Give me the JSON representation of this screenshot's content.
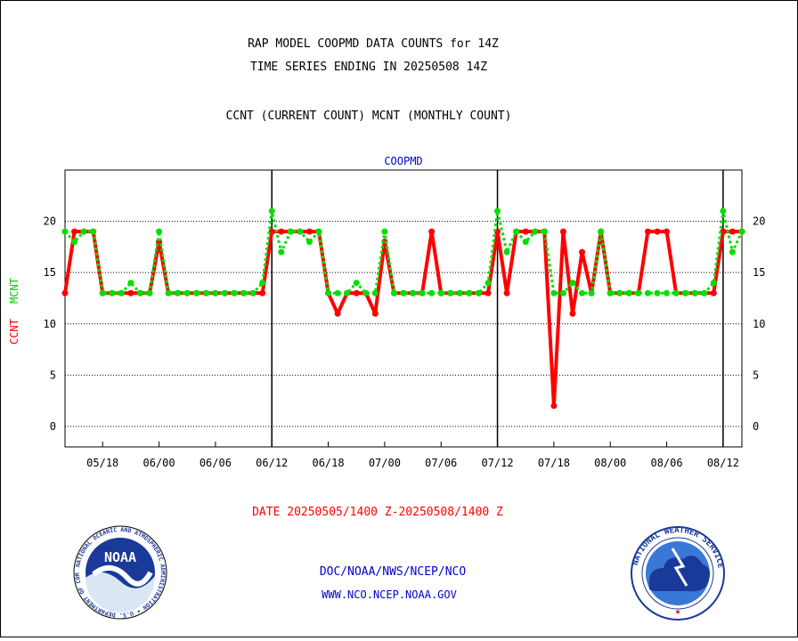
{
  "header": {
    "title_line1": "RAP MODEL COOPMD DATA COUNTS for 14Z",
    "title_line2": "TIME SERIES ENDING IN 20250508 14Z",
    "subtitle": "CCNT (CURRENT COUNT) MCNT (MONTHLY COUNT)"
  },
  "footer": {
    "date_range": "DATE 20250505/1400 Z-20250508/1400 Z",
    "org": "DOC/NOAA/NWS/NCEP/NCO",
    "url": "WWW.NCO.NCEP.NOAA.GOV"
  },
  "logos": {
    "left": {
      "icon": "noaa-logo",
      "text": "NOAA",
      "ring_text": "NATIONAL OCEANIC AND ATMOSPHERIC ADMINISTRATION • U.S. DEPARTMENT OF COMMERCE"
    },
    "right": {
      "icon": "nws-logo",
      "ring_text": "NATIONAL WEATHER SERVICE"
    }
  },
  "colors": {
    "ccnt": "#ff0000",
    "mcnt": "#00e000",
    "panel_title": "#0000cc",
    "footer_link": "#0000cc",
    "date_text": "#ff0000"
  },
  "chart_data": {
    "type": "line",
    "panel_title": "COOPMD",
    "ylabel_ccnt": "CCNT",
    "ylabel_mcnt": "MCNT",
    "ylim": [
      -2,
      25
    ],
    "yticks": [
      0,
      5,
      10,
      15,
      20
    ],
    "grid": "horizontal dotted lines at y ticks",
    "xlim": [
      0,
      72
    ],
    "x_ticks": [
      {
        "x": 4,
        "label": "05/18"
      },
      {
        "x": 10,
        "label": "06/00"
      },
      {
        "x": 16,
        "label": "06/06"
      },
      {
        "x": 22,
        "label": "06/12"
      },
      {
        "x": 28,
        "label": "06/18"
      },
      {
        "x": 34,
        "label": "07/00"
      },
      {
        "x": 40,
        "label": "07/06"
      },
      {
        "x": 46,
        "label": "07/12"
      },
      {
        "x": 52,
        "label": "07/18"
      },
      {
        "x": 58,
        "label": "08/00"
      },
      {
        "x": 64,
        "label": "08/06"
      },
      {
        "x": 70,
        "label": "08/12"
      }
    ],
    "day_boundaries": [
      22,
      46,
      70
    ],
    "series": [
      {
        "name": "CCNT",
        "x": [
          0,
          1,
          2,
          3,
          4,
          5,
          6,
          7,
          8,
          9,
          10,
          11,
          12,
          13,
          14,
          15,
          16,
          17,
          18,
          19,
          20,
          21,
          22,
          23,
          24,
          25,
          26,
          27,
          28,
          29,
          30,
          31,
          32,
          33,
          34,
          35,
          36,
          37,
          38,
          39,
          40,
          41,
          42,
          43,
          44,
          45,
          46,
          47,
          48,
          49,
          50,
          51,
          52,
          53,
          54,
          55,
          56,
          57,
          58,
          59,
          60,
          61,
          62,
          63,
          64,
          65,
          66,
          67,
          68,
          69,
          70,
          71,
          72
        ],
        "values": [
          13,
          19,
          19,
          19,
          13,
          13,
          13,
          13,
          13,
          13,
          18,
          13,
          13,
          13,
          13,
          13,
          13,
          13,
          13,
          13,
          13,
          13,
          19,
          19,
          19,
          19,
          19,
          19,
          13,
          11,
          13,
          13,
          13,
          11,
          18,
          13,
          13,
          13,
          13,
          19,
          13,
          13,
          13,
          13,
          13,
          13,
          19,
          13,
          19,
          19,
          19,
          19,
          2,
          19,
          11,
          17,
          13,
          19,
          13,
          13,
          13,
          13,
          19,
          19,
          19,
          13,
          13,
          13,
          13,
          13,
          19,
          19,
          19
        ]
      },
      {
        "name": "MCNT",
        "x": [
          0,
          1,
          2,
          3,
          4,
          5,
          6,
          7,
          8,
          9,
          10,
          11,
          12,
          13,
          14,
          15,
          16,
          17,
          18,
          19,
          20,
          21,
          22,
          23,
          24,
          25,
          26,
          27,
          28,
          29,
          30,
          31,
          32,
          33,
          34,
          35,
          36,
          37,
          38,
          39,
          40,
          41,
          42,
          43,
          44,
          45,
          46,
          47,
          48,
          49,
          50,
          51,
          52,
          53,
          54,
          55,
          56,
          57,
          58,
          59,
          60,
          61,
          62,
          63,
          64,
          65,
          66,
          67,
          68,
          69,
          70,
          71,
          72
        ],
        "values": [
          19,
          18,
          19,
          19,
          13,
          13,
          13,
          14,
          13,
          13,
          19,
          13,
          13,
          13,
          13,
          13,
          13,
          13,
          13,
          13,
          13,
          14,
          21,
          17,
          19,
          19,
          18,
          19,
          13,
          13,
          13,
          14,
          13,
          13,
          19,
          13,
          13,
          13,
          13,
          13,
          13,
          13,
          13,
          13,
          13,
          14,
          21,
          17,
          19,
          18,
          19,
          19,
          13,
          13,
          14,
          13,
          13,
          19,
          13,
          13,
          13,
          13,
          13,
          13,
          13,
          13,
          13,
          13,
          13,
          14,
          21,
          17,
          19
        ]
      }
    ]
  }
}
